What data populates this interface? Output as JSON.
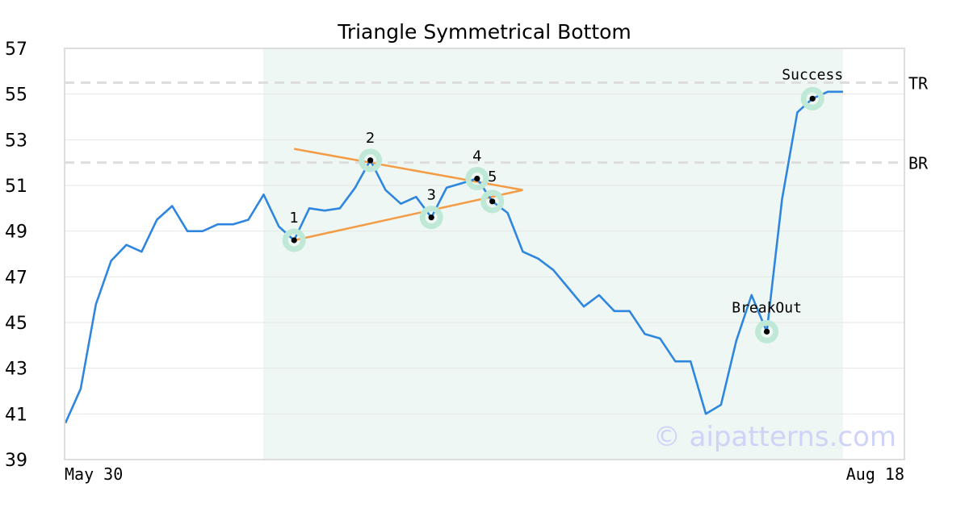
{
  "chart_data": {
    "type": "line",
    "title": "Triangle Symmetrical Bottom",
    "xlabel": "",
    "ylabel": "",
    "x_tick_labels": [
      "May 30",
      "Aug 18"
    ],
    "ylim": [
      39,
      57
    ],
    "y_ticks": [
      39,
      41,
      43,
      45,
      47,
      49,
      51,
      53,
      55,
      57
    ],
    "grid": true,
    "watermark": "© aipatterns.com",
    "colors": {
      "price": "#2e86de",
      "triangle": "#f39c45",
      "highlight_fill": "#eef7f3",
      "marker_halo": "#bfe9d6",
      "marker_dot": "#000000",
      "ref_line": "#dddddd",
      "watermark": "#cfd3f7"
    },
    "series": [
      {
        "values": [
          40.6,
          42.1,
          45.8,
          47.7,
          48.4,
          48.1,
          49.5,
          50.1,
          49.0,
          49.0,
          49.3,
          49.3,
          49.5,
          50.6,
          49.2,
          48.6,
          50.0,
          49.9,
          50.0,
          50.9,
          52.1,
          50.8,
          50.2,
          50.5,
          49.6,
          50.9,
          51.1,
          51.3,
          50.3,
          49.8,
          48.1,
          47.8,
          47.3,
          46.5,
          45.7,
          46.2,
          45.5,
          45.5,
          44.5,
          44.3,
          43.3,
          43.3,
          41.0,
          41.4,
          44.2,
          46.2,
          44.6,
          50.4,
          54.2,
          54.8,
          55.1,
          55.1
        ]
      }
    ],
    "highlight_range": {
      "from_index": 13,
      "to_index": 51
    },
    "reference_lines": [
      {
        "label": "TR",
        "value": 55.5
      },
      {
        "label": "BR",
        "value": 52.0
      }
    ],
    "triangle": {
      "upper": [
        {
          "index": 15,
          "value": 52.6
        },
        {
          "index": 30,
          "value": 50.8
        }
      ],
      "lower": [
        {
          "index": 15,
          "value": 48.6
        },
        {
          "index": 30,
          "value": 50.8
        }
      ]
    },
    "markers": [
      {
        "label": "1",
        "index": 15,
        "value": 48.6
      },
      {
        "label": "2",
        "index": 20,
        "value": 52.1
      },
      {
        "label": "3",
        "index": 24,
        "value": 49.6
      },
      {
        "label": "4",
        "index": 27,
        "value": 51.3
      },
      {
        "label": "5",
        "index": 28,
        "value": 50.3
      },
      {
        "label": "BreakOut",
        "index": 46,
        "value": 44.6
      },
      {
        "label": "Success",
        "index": 49,
        "value": 54.8
      }
    ]
  }
}
